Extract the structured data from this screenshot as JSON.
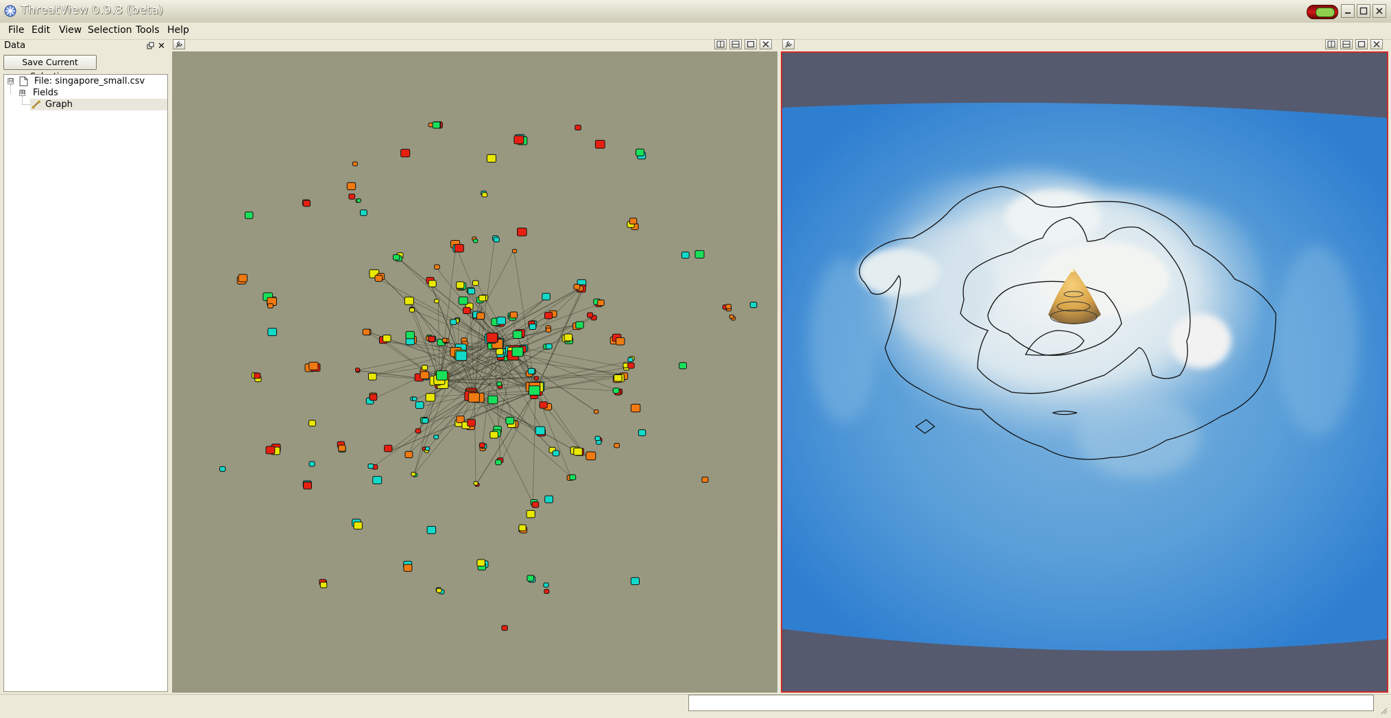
{
  "window": {
    "title": "ThreatView 0.9.8 (beta)",
    "buttons": [
      "minimize",
      "maximize",
      "close"
    ]
  },
  "menu": {
    "items": [
      {
        "label": "File",
        "accel": "F"
      },
      {
        "label": "Edit",
        "accel": "E"
      },
      {
        "label": "View",
        "accel": "V"
      },
      {
        "label": "Selection",
        "accel": ""
      },
      {
        "label": "Tools",
        "accel": "T"
      },
      {
        "label": "Help",
        "accel": "H"
      }
    ]
  },
  "dock": {
    "title": "Data",
    "save_button": "Save Current Selection",
    "tree": [
      {
        "label": "File: singapore_small.csv",
        "icon": "file-icon",
        "expander": "⊟"
      },
      {
        "label": "Fields",
        "icon": "",
        "expander": "⊞"
      },
      {
        "label": "Graph",
        "icon": "graph-icon",
        "expander": "",
        "selected": true
      }
    ]
  },
  "graph_panel": {
    "name": "network graph view",
    "node_colors": [
      "#19e05a",
      "#12d9c8",
      "#e8e800",
      "#e62010",
      "#f07a10"
    ]
  },
  "terrain_panel": {
    "name": "3D terrain density view",
    "colors": {
      "border": "#cc2a2a",
      "background": "#555a6e",
      "water": "#2e7bd0",
      "peak": "#e2b050"
    }
  },
  "statusbar": {
    "message": ""
  }
}
